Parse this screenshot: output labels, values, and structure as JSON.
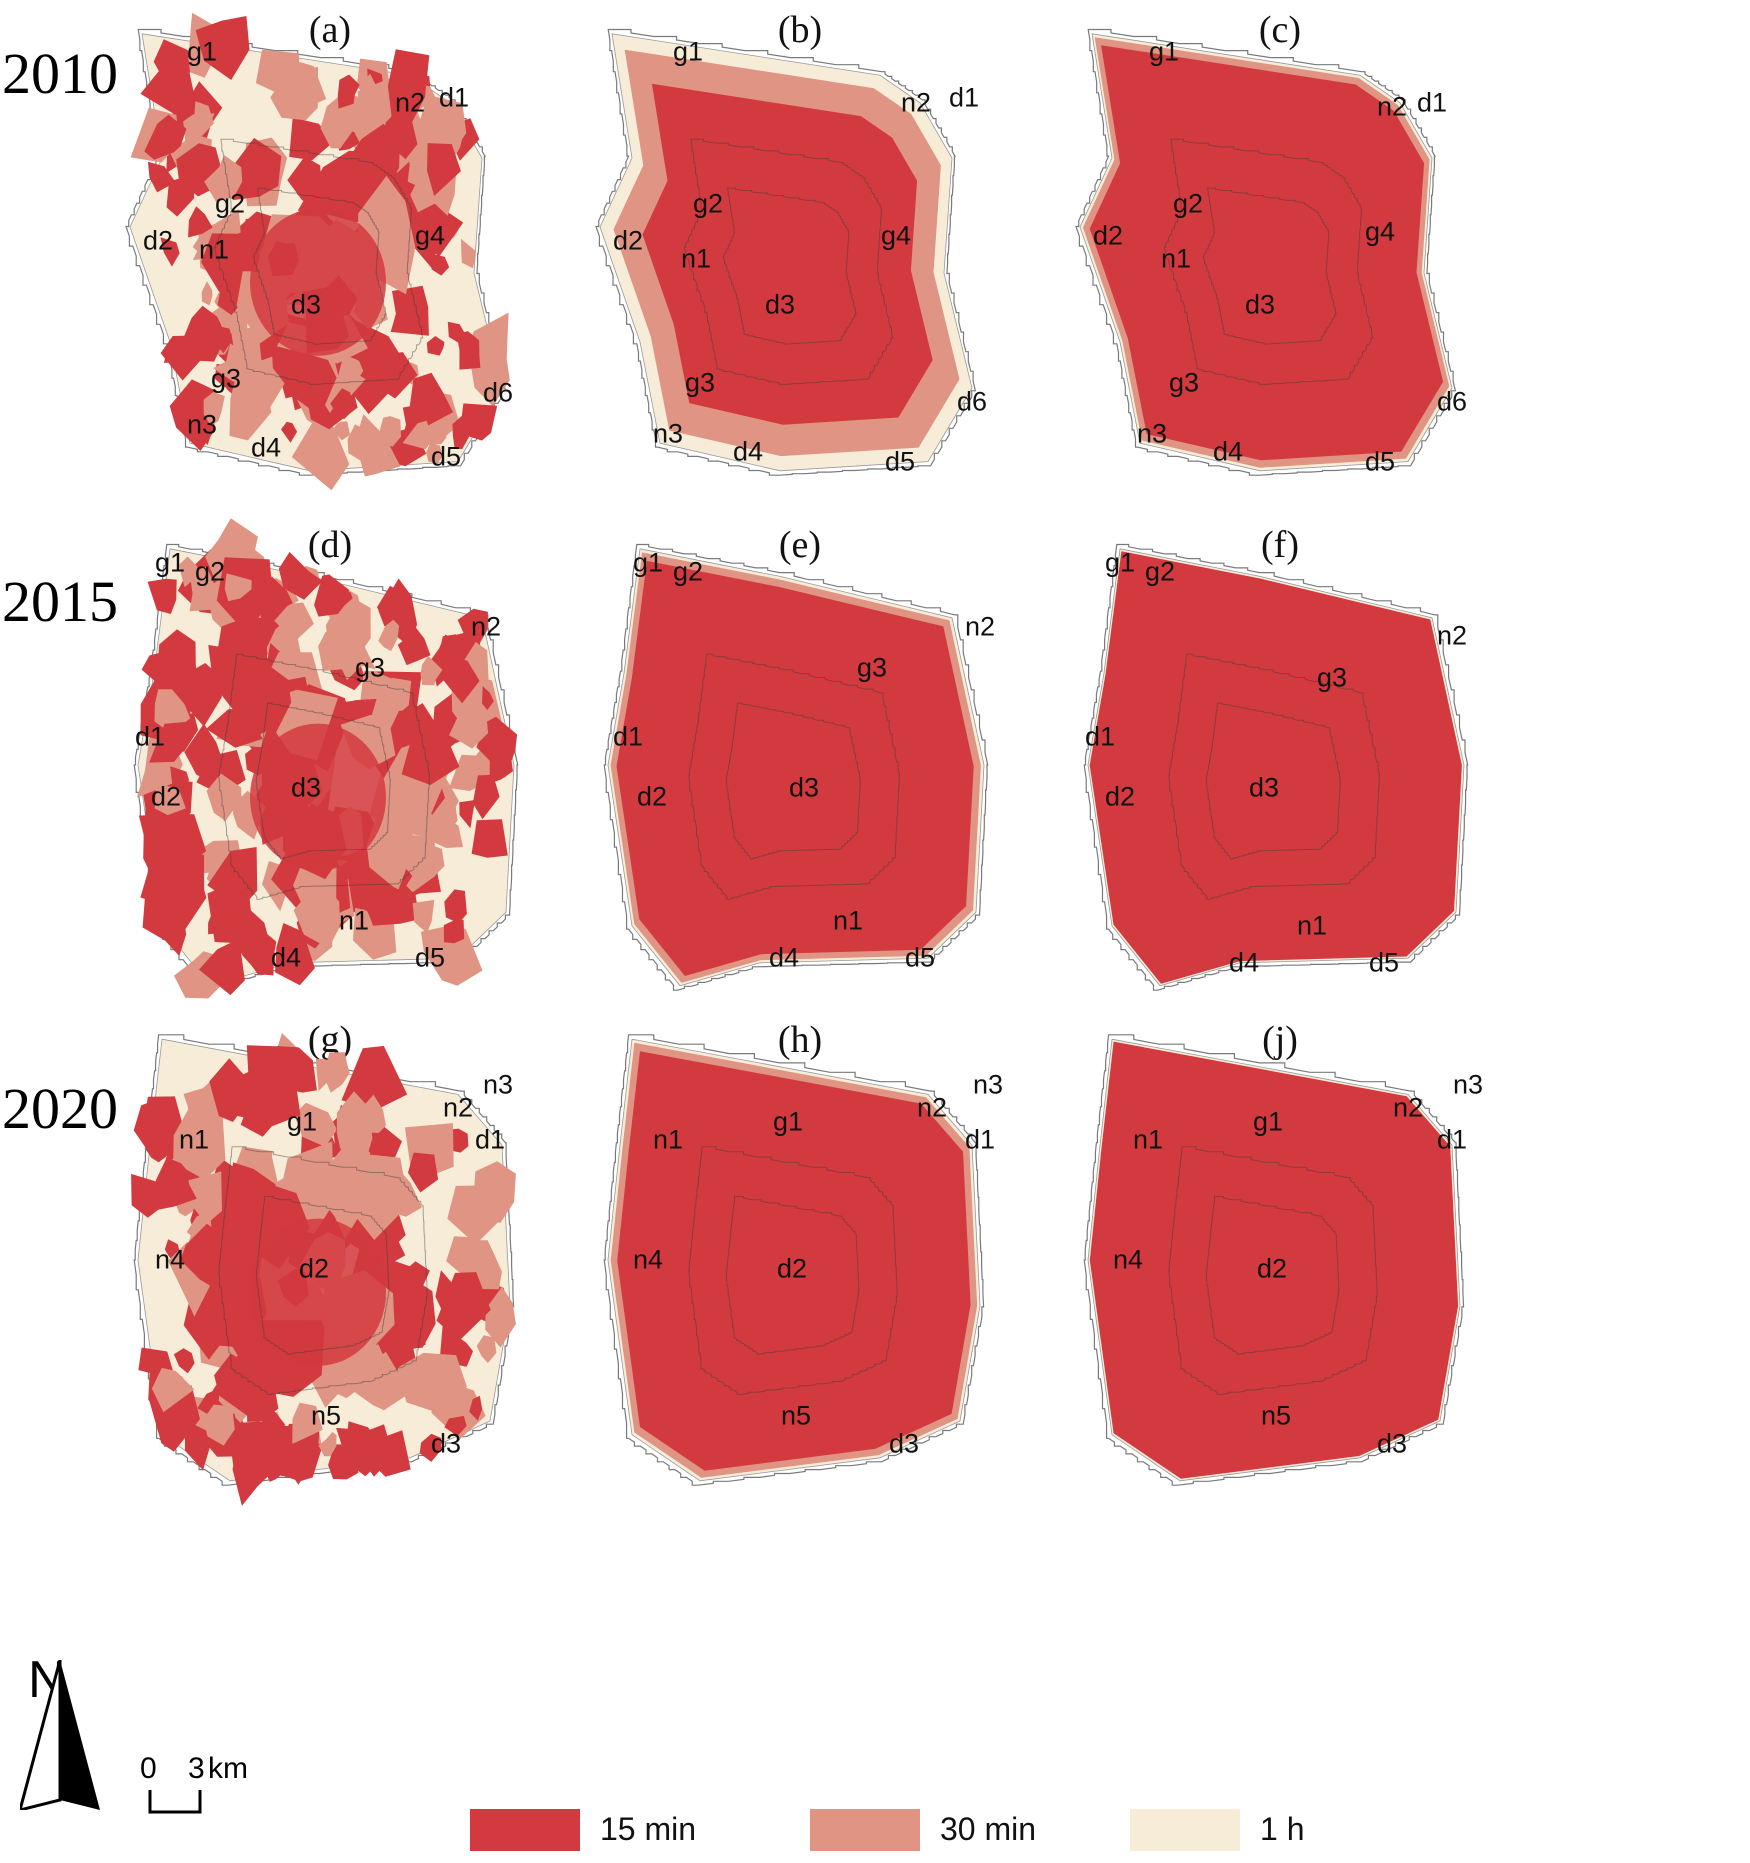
{
  "colors": {
    "c15": "#d23a3f",
    "c30": "#e09483",
    "c60": "#f7ecd8",
    "boundary": "#7a7a7a"
  },
  "years": [
    "2010",
    "2015",
    "2020"
  ],
  "panels": [
    {
      "letter": "(a)",
      "coverage": "low",
      "labels": [
        [
          "g1",
          0.18,
          0.07
        ],
        [
          "n2",
          0.7,
          0.18
        ],
        [
          "d1",
          0.81,
          0.17
        ],
        [
          "g2",
          0.25,
          0.4
        ],
        [
          "d2",
          0.07,
          0.48
        ],
        [
          "n1",
          0.21,
          0.5
        ],
        [
          "g4",
          0.75,
          0.47
        ],
        [
          "d3",
          0.44,
          0.62
        ],
        [
          "g3",
          0.24,
          0.78
        ],
        [
          "d6",
          0.92,
          0.81
        ],
        [
          "n3",
          0.18,
          0.88
        ],
        [
          "d4",
          0.34,
          0.93
        ],
        [
          "d5",
          0.79,
          0.95
        ]
      ]
    },
    {
      "letter": "(b)",
      "coverage": "medium",
      "labels": [
        [
          "g1",
          0.22,
          0.07
        ],
        [
          "n2",
          0.79,
          0.18
        ],
        [
          "d1",
          0.91,
          0.17
        ],
        [
          "g2",
          0.27,
          0.4
        ],
        [
          "d2",
          0.07,
          0.48
        ],
        [
          "n1",
          0.24,
          0.52
        ],
        [
          "g4",
          0.74,
          0.47
        ],
        [
          "d3",
          0.45,
          0.62
        ],
        [
          "g3",
          0.25,
          0.79
        ],
        [
          "d6",
          0.93,
          0.83
        ],
        [
          "n3",
          0.17,
          0.9
        ],
        [
          "d4",
          0.37,
          0.94
        ],
        [
          "d5",
          0.75,
          0.96
        ]
      ]
    },
    {
      "letter": "(c)",
      "coverage": "high",
      "labels": [
        [
          "g1",
          0.21,
          0.07
        ],
        [
          "n2",
          0.78,
          0.19
        ],
        [
          "d1",
          0.88,
          0.18
        ],
        [
          "g2",
          0.27,
          0.4
        ],
        [
          "d2",
          0.07,
          0.47
        ],
        [
          "n1",
          0.24,
          0.52
        ],
        [
          "g4",
          0.75,
          0.46
        ],
        [
          "d3",
          0.45,
          0.62
        ],
        [
          "g3",
          0.26,
          0.79
        ],
        [
          "d6",
          0.93,
          0.83
        ],
        [
          "n3",
          0.18,
          0.9
        ],
        [
          "d4",
          0.37,
          0.94
        ],
        [
          "d5",
          0.75,
          0.96
        ]
      ]
    },
    {
      "letter": "(d)",
      "coverage": "low",
      "labels": [
        [
          "g1",
          0.1,
          0.06
        ],
        [
          "g2",
          0.2,
          0.08
        ],
        [
          "n2",
          0.89,
          0.2
        ],
        [
          "g3",
          0.6,
          0.29
        ],
        [
          "d1",
          0.05,
          0.44
        ],
        [
          "d2",
          0.09,
          0.57
        ],
        [
          "d3",
          0.44,
          0.55
        ],
        [
          "n1",
          0.56,
          0.84
        ],
        [
          "d4",
          0.39,
          0.92
        ],
        [
          "d5",
          0.75,
          0.92
        ]
      ]
    },
    {
      "letter": "(e)",
      "coverage": "high",
      "labels": [
        [
          "g1",
          0.12,
          0.06
        ],
        [
          "g2",
          0.22,
          0.08
        ],
        [
          "n2",
          0.95,
          0.2
        ],
        [
          "g3",
          0.68,
          0.29
        ],
        [
          "d1",
          0.07,
          0.44
        ],
        [
          "d2",
          0.13,
          0.57
        ],
        [
          "d3",
          0.51,
          0.55
        ],
        [
          "n1",
          0.62,
          0.84
        ],
        [
          "d4",
          0.46,
          0.92
        ],
        [
          "d5",
          0.8,
          0.92
        ]
      ]
    },
    {
      "letter": "(f)",
      "coverage": "full",
      "labels": [
        [
          "g1",
          0.1,
          0.06
        ],
        [
          "g2",
          0.2,
          0.08
        ],
        [
          "n2",
          0.93,
          0.22
        ],
        [
          "g3",
          0.63,
          0.31
        ],
        [
          "d1",
          0.05,
          0.44
        ],
        [
          "d2",
          0.1,
          0.57
        ],
        [
          "d3",
          0.46,
          0.55
        ],
        [
          "n1",
          0.58,
          0.85
        ],
        [
          "d4",
          0.41,
          0.93
        ],
        [
          "d5",
          0.76,
          0.93
        ]
      ]
    },
    {
      "letter": "(g)",
      "coverage": "low",
      "labels": [
        [
          "n3",
          0.92,
          0.12
        ],
        [
          "n2",
          0.82,
          0.17
        ],
        [
          "d1",
          0.9,
          0.24
        ],
        [
          "g1",
          0.43,
          0.2
        ],
        [
          "n1",
          0.16,
          0.24
        ],
        [
          "n4",
          0.1,
          0.5
        ],
        [
          "d2",
          0.46,
          0.52
        ],
        [
          "n5",
          0.49,
          0.84
        ],
        [
          "d3",
          0.79,
          0.9
        ]
      ]
    },
    {
      "letter": "(h)",
      "coverage": "high",
      "labels": [
        [
          "n3",
          0.97,
          0.12
        ],
        [
          "n2",
          0.83,
          0.17
        ],
        [
          "d1",
          0.95,
          0.24
        ],
        [
          "g1",
          0.47,
          0.2
        ],
        [
          "n1",
          0.17,
          0.24
        ],
        [
          "n4",
          0.12,
          0.5
        ],
        [
          "d2",
          0.48,
          0.52
        ],
        [
          "n5",
          0.49,
          0.84
        ],
        [
          "d3",
          0.76,
          0.9
        ]
      ]
    },
    {
      "letter": "(j)",
      "coverage": "full",
      "labels": [
        [
          "n3",
          0.97,
          0.12
        ],
        [
          "n2",
          0.82,
          0.17
        ],
        [
          "d1",
          0.93,
          0.24
        ],
        [
          "g1",
          0.47,
          0.2
        ],
        [
          "n1",
          0.17,
          0.24
        ],
        [
          "n4",
          0.12,
          0.5
        ],
        [
          "d2",
          0.48,
          0.52
        ],
        [
          "n5",
          0.49,
          0.84
        ],
        [
          "d3",
          0.78,
          0.9
        ]
      ]
    }
  ],
  "north": {
    "letter": "N"
  },
  "scale": {
    "start": "0",
    "end": "3",
    "unit": "km"
  },
  "legend": [
    {
      "label": "15 min",
      "color": "#d23a3f"
    },
    {
      "label": "30 min",
      "color": "#e09483"
    },
    {
      "label": "1 h",
      "color": "#f7ecd8"
    }
  ]
}
